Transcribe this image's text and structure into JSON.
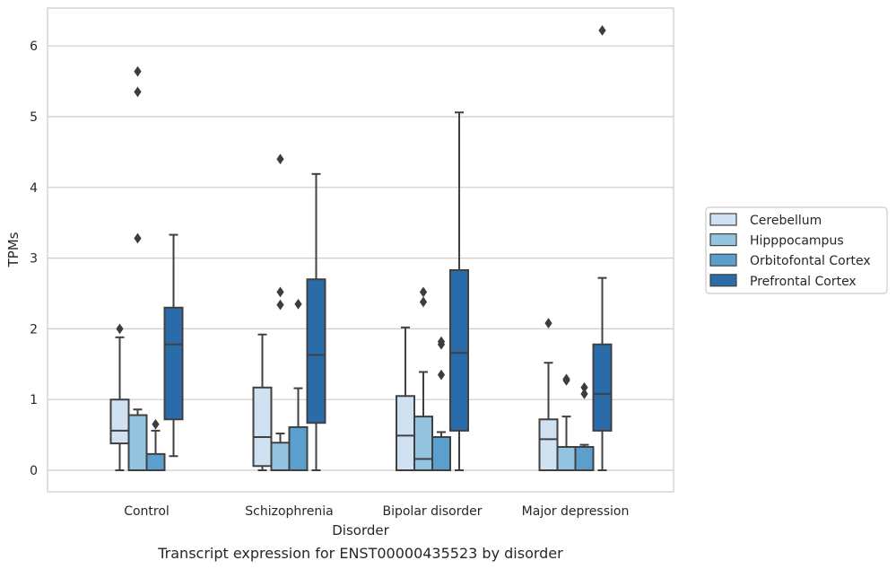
{
  "chart_data": {
    "type": "box",
    "title": "Transcript expression for ENST00000435523 by disorder",
    "xlabel": "Disorder",
    "ylabel": "TPMs",
    "ylim": [
      -0.3,
      6.55
    ],
    "yticks": [
      0,
      1,
      2,
      3,
      4,
      5,
      6
    ],
    "grid": true,
    "legend_position": "right",
    "categories": [
      "Control",
      "Schizophrenia",
      "Bipolar disorder",
      "Major depression"
    ],
    "series": [
      {
        "name": "Cerebellum",
        "color": "#d0e1f2",
        "boxes": [
          {
            "whislo": 0.0,
            "q1": 0.38,
            "med": 0.56,
            "q3": 1.0,
            "whishi": 1.88,
            "fliers": [
              2.0
            ]
          },
          {
            "whislo": 0.0,
            "q1": 0.06,
            "med": 0.47,
            "q3": 1.17,
            "whishi": 1.92,
            "fliers": []
          },
          {
            "whislo": 0.0,
            "q1": 0.0,
            "med": 0.49,
            "q3": 1.05,
            "whishi": 2.02,
            "fliers": []
          },
          {
            "whislo": 0.0,
            "q1": 0.0,
            "med": 0.44,
            "q3": 0.72,
            "whishi": 1.52,
            "fliers": [
              2.08
            ]
          }
        ]
      },
      {
        "name": "Hipppocampus",
        "color": "#94c4df",
        "boxes": [
          {
            "whislo": 0.0,
            "q1": 0.0,
            "med": 0.0,
            "q3": 0.78,
            "whishi": 0.86,
            "fliers": [
              3.28,
              5.35,
              5.64
            ]
          },
          {
            "whislo": 0.0,
            "q1": 0.0,
            "med": 0.0,
            "q3": 0.39,
            "whishi": 0.52,
            "fliers": [
              2.34,
              2.52,
              4.4
            ]
          },
          {
            "whislo": 0.0,
            "q1": 0.0,
            "med": 0.16,
            "q3": 0.76,
            "whishi": 1.39,
            "fliers": [
              2.38,
              2.52
            ]
          },
          {
            "whislo": 0.0,
            "q1": 0.0,
            "med": 0.0,
            "q3": 0.33,
            "whishi": 0.76,
            "fliers": [
              1.27,
              1.29
            ]
          }
        ]
      },
      {
        "name": "Orbitofontal Cortex",
        "color": "#5a9fce",
        "boxes": [
          {
            "whislo": 0.0,
            "q1": 0.0,
            "med": 0.0,
            "q3": 0.23,
            "whishi": 0.56,
            "fliers": [
              0.65
            ]
          },
          {
            "whislo": 0.0,
            "q1": 0.0,
            "med": 0.0,
            "q3": 0.61,
            "whishi": 1.16,
            "fliers": [
              2.35
            ]
          },
          {
            "whislo": 0.0,
            "q1": 0.0,
            "med": 0.0,
            "q3": 0.47,
            "whishi": 0.54,
            "fliers": [
              1.35,
              1.78,
              1.82
            ]
          },
          {
            "whislo": 0.0,
            "q1": 0.0,
            "med": 0.0,
            "q3": 0.33,
            "whishi": 0.36,
            "fliers": [
              1.08,
              1.17
            ]
          }
        ]
      },
      {
        "name": "Prefrontal Cortex",
        "color": "#2a6ba9",
        "boxes": [
          {
            "whislo": 0.2,
            "q1": 0.72,
            "med": 1.78,
            "q3": 2.3,
            "whishi": 3.33,
            "fliers": []
          },
          {
            "whislo": 0.0,
            "q1": 0.67,
            "med": 1.63,
            "q3": 2.7,
            "whishi": 4.19,
            "fliers": []
          },
          {
            "whislo": 0.0,
            "q1": 0.56,
            "med": 1.66,
            "q3": 2.83,
            "whishi": 5.06,
            "fliers": []
          },
          {
            "whislo": 0.0,
            "q1": 0.56,
            "med": 1.08,
            "q3": 1.78,
            "whishi": 2.72,
            "fliers": [
              6.22
            ]
          }
        ]
      }
    ]
  }
}
